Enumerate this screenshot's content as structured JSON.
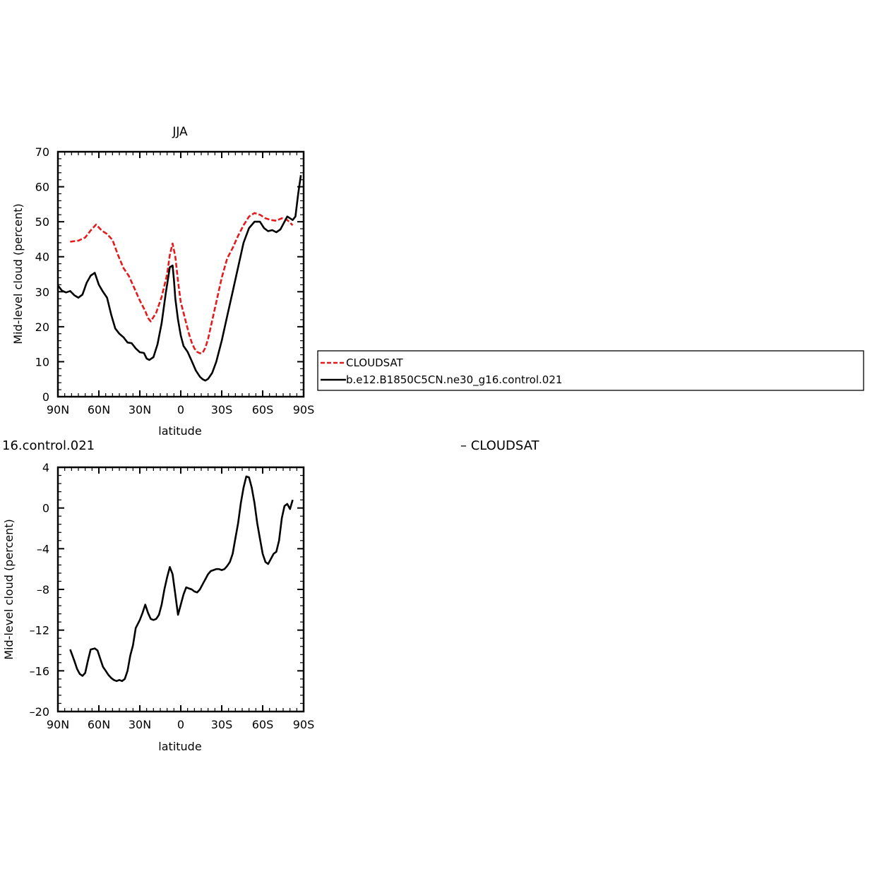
{
  "chart_data": [
    {
      "type": "line",
      "title": "JJA",
      "xlabel": "latitude",
      "ylabel": "Mid-level cloud (percent)",
      "xlim": [
        90,
        -90
      ],
      "ylim": [
        0,
        70
      ],
      "xticks": [
        90,
        60,
        30,
        0,
        -30,
        -60,
        -90
      ],
      "xtick_labels": [
        "90N",
        "60N",
        "30N",
        "0",
        "30S",
        "60S",
        "90S"
      ],
      "yticks": [
        0,
        10,
        20,
        30,
        40,
        50,
        60,
        70
      ],
      "ytick_labels": [
        "0",
        "10",
        "20",
        "30",
        "40",
        "50",
        "60",
        "70"
      ],
      "legend": {
        "placement": "right",
        "entries": [
          "CLOUDSAT",
          "b.e12.B1850C5CN.ne30_g16.control.021"
        ]
      },
      "series": [
        {
          "name": "CLOUDSAT",
          "color": "#e41a1c",
          "dash": true,
          "x": [
            81,
            75,
            70,
            66,
            62,
            58,
            54,
            50,
            46,
            42,
            38,
            34,
            30,
            26,
            24,
            22,
            18,
            14,
            10,
            8,
            6,
            4,
            2,
            0,
            -2,
            -4,
            -6,
            -8,
            -10,
            -12,
            -14,
            -16,
            -18,
            -20,
            -22,
            -26,
            -30,
            -34,
            -38,
            -42,
            -46,
            -50,
            -54,
            -58,
            -62,
            -66,
            -70,
            -74,
            -78,
            -82
          ],
          "y": [
            44.3,
            44.6,
            45.5,
            47.5,
            49.2,
            47.5,
            46.5,
            44.8,
            40.5,
            36.8,
            34.5,
            31.0,
            27.5,
            24.5,
            22.5,
            21.5,
            24.0,
            28.5,
            35.0,
            40.5,
            43.8,
            40.0,
            33.0,
            27.0,
            24.0,
            21.0,
            18.0,
            15.5,
            13.8,
            12.8,
            12.4,
            12.5,
            14.0,
            16.5,
            20.0,
            27.0,
            34.0,
            39.5,
            42.5,
            46.0,
            49.0,
            51.5,
            52.5,
            52.0,
            51.0,
            50.5,
            50.3,
            51.0,
            50.5,
            49.0
          ]
        },
        {
          "name": "b.e12.B1850C5CN.ne30_g16.control.021",
          "color": "#000000",
          "dash": false,
          "x": [
            90,
            87,
            84,
            81,
            78,
            75,
            72,
            69,
            66,
            63,
            60,
            57,
            54,
            51,
            48,
            45,
            42,
            39,
            36,
            33,
            30,
            27,
            25,
            23,
            20,
            17,
            14,
            11,
            8,
            6,
            5,
            4,
            2,
            0,
            -2,
            -5,
            -8,
            -11,
            -14,
            -16,
            -18,
            -20,
            -23,
            -26,
            -30,
            -34,
            -38,
            -42,
            -46,
            -50,
            -54,
            -58,
            -61,
            -64,
            -67,
            -70,
            -73,
            -76,
            -78,
            -80,
            -82,
            -84,
            -86,
            -88
          ],
          "y": [
            31.8,
            30.3,
            29.8,
            30.2,
            29.0,
            28.3,
            29.2,
            32.5,
            34.6,
            35.4,
            32.0,
            30.0,
            28.3,
            23.5,
            19.5,
            18.0,
            17.0,
            15.5,
            15.3,
            13.8,
            12.7,
            12.5,
            10.9,
            10.5,
            11.3,
            15.0,
            21.0,
            29.5,
            37.0,
            37.5,
            33.5,
            28.0,
            22.0,
            17.5,
            14.5,
            12.8,
            10.2,
            7.5,
            5.7,
            5.0,
            4.6,
            5.1,
            6.8,
            10.0,
            16.0,
            23.0,
            30.0,
            37.0,
            44.0,
            48.2,
            50.0,
            50.0,
            48.2,
            47.3,
            47.6,
            47.0,
            47.8,
            50.0,
            51.5,
            51.0,
            50.5,
            51.5,
            58.0,
            63.3
          ]
        }
      ]
    },
    {
      "type": "line",
      "title": "16.control.021",
      "title_right": "– CLOUDSAT",
      "xlabel": "latitude",
      "ylabel": "Mid-level cloud (percent)",
      "xlim": [
        90,
        -90
      ],
      "ylim": [
        -20,
        4
      ],
      "xticks": [
        90,
        60,
        30,
        0,
        -30,
        -60,
        -90
      ],
      "xtick_labels": [
        "90N",
        "60N",
        "30N",
        "0",
        "30S",
        "60S",
        "90S"
      ],
      "yticks": [
        4,
        0,
        -4,
        -8,
        -12,
        -16,
        -20
      ],
      "ytick_labels": [
        "4",
        "0",
        "–4",
        "–8",
        "–12",
        "–16",
        "–20"
      ],
      "series": [
        {
          "name": "",
          "color": "#000000",
          "dash": false,
          "x": [
            81,
            78,
            76,
            74,
            72,
            70,
            68,
            66,
            63,
            61,
            59,
            57,
            55,
            53,
            51,
            49,
            47,
            45,
            43,
            41,
            39,
            37,
            35,
            33,
            30,
            28,
            26,
            24,
            22,
            20,
            18,
            16,
            14,
            12,
            10,
            8,
            6,
            4,
            2,
            0,
            -2,
            -4,
            -6,
            -8,
            -10,
            -12,
            -14,
            -16,
            -18,
            -20,
            -22,
            -24,
            -26,
            -28,
            -30,
            -32,
            -34,
            -36,
            -38,
            -40,
            -42,
            -44,
            -46,
            -48,
            -50,
            -52,
            -54,
            -56,
            -58,
            -60,
            -62,
            -64,
            -66,
            -68,
            -70,
            -72,
            -74,
            -76,
            -78,
            -80,
            -82
          ],
          "y": [
            -13.9,
            -15.0,
            -15.8,
            -16.3,
            -16.5,
            -16.2,
            -15.0,
            -13.9,
            -13.8,
            -14.0,
            -14.8,
            -15.6,
            -16.0,
            -16.4,
            -16.7,
            -16.9,
            -17.0,
            -16.9,
            -17.0,
            -16.8,
            -16.0,
            -14.5,
            -13.5,
            -11.8,
            -11.0,
            -10.3,
            -9.5,
            -10.3,
            -10.9,
            -11.0,
            -10.9,
            -10.5,
            -9.5,
            -8.0,
            -6.8,
            -5.8,
            -6.5,
            -8.5,
            -10.5,
            -9.5,
            -8.5,
            -7.8,
            -7.9,
            -8.0,
            -8.2,
            -8.3,
            -8.0,
            -7.5,
            -7.0,
            -6.5,
            -6.2,
            -6.1,
            -6.0,
            -6.0,
            -6.1,
            -6.0,
            -5.7,
            -5.3,
            -4.5,
            -3.0,
            -1.5,
            0.5,
            2.0,
            3.1,
            3.0,
            2.0,
            0.5,
            -1.5,
            -3.0,
            -4.5,
            -5.3,
            -5.5,
            -5.0,
            -4.5,
            -4.3,
            -3.2,
            -1.0,
            0.2,
            0.4,
            -0.1,
            0.8
          ]
        }
      ]
    }
  ]
}
